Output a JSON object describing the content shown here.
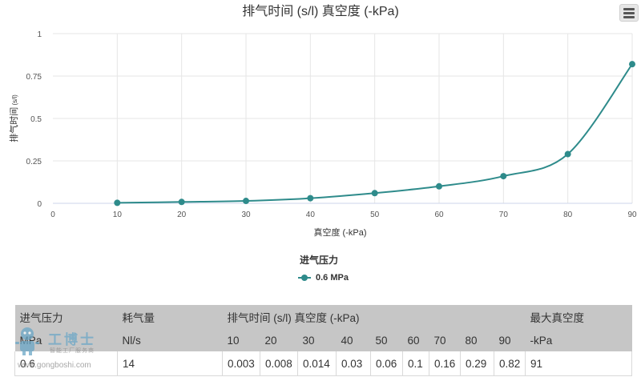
{
  "chart_data": {
    "type": "line",
    "title": "排气时间 (s/l) 真空度 (-kPa)",
    "xlabel": "真空度 (-kPa)",
    "ylabel": "排气时间",
    "ylabel_unit": "(s/l)",
    "x": [
      10,
      20,
      30,
      40,
      50,
      60,
      70,
      80,
      90
    ],
    "series": [
      {
        "name": "0.6 MPa",
        "color": "#2e8b8b",
        "values": [
          0.003,
          0.008,
          0.014,
          0.03,
          0.06,
          0.1,
          0.16,
          0.29,
          0.82
        ]
      }
    ],
    "xlim": [
      0,
      90
    ],
    "ylim": [
      0,
      1
    ],
    "xticks": [
      "0",
      "10",
      "20",
      "30",
      "40",
      "50",
      "60",
      "70",
      "80",
      "90"
    ],
    "yticks": [
      "0",
      "0.25",
      "0.5",
      "0.75",
      "1"
    ],
    "grid": true,
    "legend": {
      "title": "进气压力",
      "placement": "bottom-center"
    }
  },
  "table": {
    "header1": [
      "进气压力",
      "耗气量",
      "排气时间 (s/l) 真空度 (-kPa)",
      "最大真空度"
    ],
    "header2": [
      "MPa",
      "Nl/s",
      "10",
      "20",
      "30",
      "40",
      "50",
      "60",
      "70",
      "80",
      "90",
      "-kPa"
    ],
    "rows": [
      [
        "0.6",
        "14",
        "0.003",
        "0.008",
        "0.014",
        "0.03",
        "0.06",
        "0.1",
        "0.16",
        "0.29",
        "0.82",
        "91"
      ]
    ]
  },
  "watermark": {
    "name": "工博士",
    "tagline": "智能工厂服务商",
    "url": "www.gongboshi.com"
  }
}
